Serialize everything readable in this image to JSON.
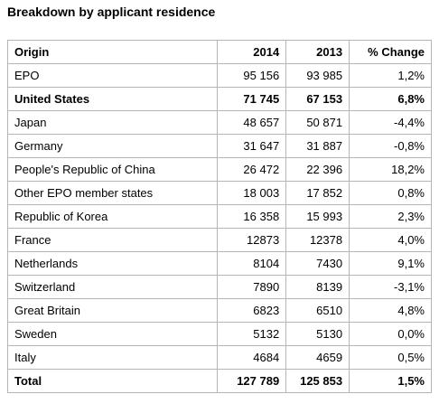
{
  "title": "Breakdown by applicant residence",
  "table": {
    "header": [
      "Origin",
      "2014",
      "2013",
      "% Change"
    ],
    "rows": [
      [
        "EPO",
        "95 156",
        "93 985",
        "1,2%"
      ],
      [
        "United States",
        "71 745",
        "67 153",
        "6,8%"
      ],
      [
        "Japan",
        "48 657",
        "50 871",
        "-4,4%"
      ],
      [
        "Germany",
        "31 647",
        "31 887",
        "-0,8%"
      ],
      [
        "People's Republic of China",
        "26 472",
        "22 396",
        "18,2%"
      ],
      [
        "Other EPO member states",
        "18 003",
        "17 852",
        "0,8%"
      ],
      [
        "Republic of Korea",
        "16 358",
        "15 993",
        "2,3%"
      ],
      [
        "France",
        "12873",
        "12378",
        "4,0%"
      ],
      [
        "Netherlands",
        "8104",
        "7430",
        "9,1%"
      ],
      [
        "Switzerland",
        "7890",
        "8139",
        "-3,1%"
      ],
      [
        "Great Britain",
        "6823",
        "6510",
        "4,8%"
      ],
      [
        "Sweden",
        "5132",
        "5130",
        "0,0%"
      ],
      [
        "Italy",
        "4684",
        "4659",
        "0,5%"
      ],
      [
        "Total",
        "127 789",
        "125 853",
        "1,5%"
      ]
    ]
  }
}
